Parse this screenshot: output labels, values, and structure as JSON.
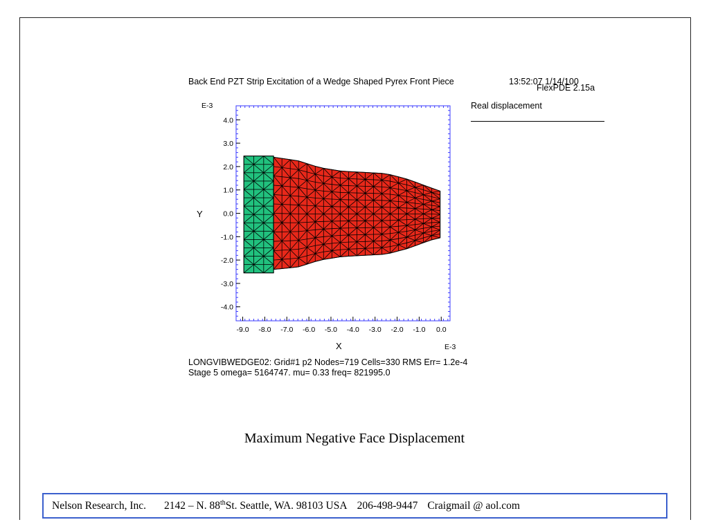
{
  "plot": {
    "title": "Back End PZT Strip Excitation of a Wedge Shaped Pyrex Front Piece",
    "timestamp": "13:52:07 1/14/100",
    "software_version": "FlexPDE 2.15a",
    "legend_label": "Real displacement",
    "x_axis_label": "X",
    "y_axis_label": "Y",
    "x_exponent": "E-3",
    "y_exponent": "E-3",
    "run_info_line1": "LONGVIBWEDGE02:  Grid#1  p2  Nodes=719 Cells=330 RMS Err= 1.2e-4",
    "run_info_line2": "Stage 5  omega=  5164747.  mu=  0.33  freq=  821995.0",
    "colors": {
      "pzt_region": "#21c17e",
      "pyrex_region": "#e8281a",
      "mesh_lines": "#000000",
      "frame": "#3a3aff"
    }
  },
  "chart_data": {
    "type": "mesh",
    "xlabel": "X",
    "ylabel": "Y",
    "axis_scale": "E-3",
    "xlim": [
      -9.3,
      0.4
    ],
    "ylim": [
      -4.6,
      4.6
    ],
    "x_ticks": [
      "-9.0",
      "-8.0",
      "-7.0",
      "-6.0",
      "-5.0",
      "-4.0",
      "-3.0",
      "-2.0",
      "-1.0",
      "0.0"
    ],
    "y_ticks": [
      "4.0",
      "3.0",
      "2.0",
      "1.0",
      "0.0",
      "-1.0",
      "-2.0",
      "-3.0",
      "-4.0"
    ],
    "regions": [
      {
        "material": "PZT strip",
        "x_range": [
          -8.95,
          -7.6
        ],
        "y_range": [
          -2.55,
          2.45
        ]
      },
      {
        "material": "Pyrex front piece",
        "top_edge": [
          [
            -7.6,
            2.4
          ],
          [
            -6.5,
            2.25
          ],
          [
            -5.5,
            1.95
          ],
          [
            -4.5,
            1.8
          ],
          [
            -3.5,
            1.75
          ],
          [
            -2.5,
            1.7
          ],
          [
            -1.5,
            1.45
          ],
          [
            -0.5,
            1.1
          ],
          [
            -0.05,
            0.95
          ]
        ],
        "bottom_edge": [
          [
            -7.6,
            -2.4
          ],
          [
            -6.5,
            -2.3
          ],
          [
            -5.5,
            -2.0
          ],
          [
            -4.5,
            -1.85
          ],
          [
            -3.5,
            -1.8
          ],
          [
            -2.5,
            -1.75
          ],
          [
            -1.5,
            -1.5
          ],
          [
            -0.5,
            -1.15
          ],
          [
            -0.05,
            -1.05
          ]
        ]
      }
    ]
  },
  "caption": "Maximum Negative Face Displacement",
  "contact": {
    "company": "Nelson Research, Inc.",
    "address_prefix": "2142 –  N. 88",
    "address_sup": "th",
    "address_suffix": " St. Seattle, WA. 98103   USA",
    "phone": "206-498-9447",
    "email": "Craigmail @ aol.com"
  }
}
